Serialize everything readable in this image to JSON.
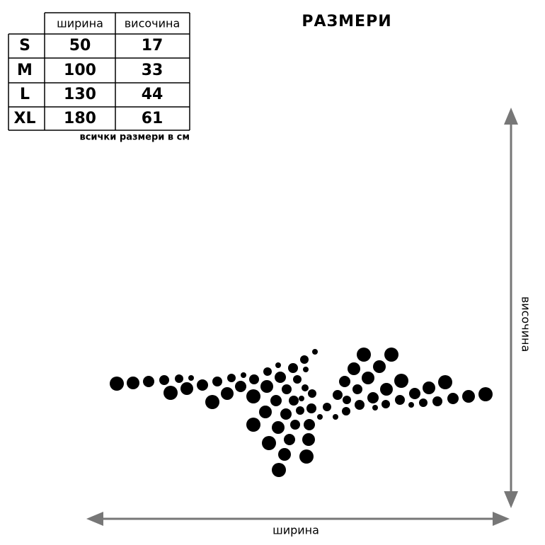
{
  "header": {
    "title": "РАЗМЕРИ"
  },
  "table": {
    "columns": [
      "ширина",
      "височина"
    ],
    "rows": [
      [
        "S",
        50,
        17
      ],
      [
        "M",
        100,
        33
      ],
      [
        "L",
        130,
        44
      ],
      [
        "XL",
        180,
        61
      ]
    ],
    "note": "всички размери в см"
  },
  "axes": {
    "x_label": "ширина",
    "y_label": "височина"
  }
}
